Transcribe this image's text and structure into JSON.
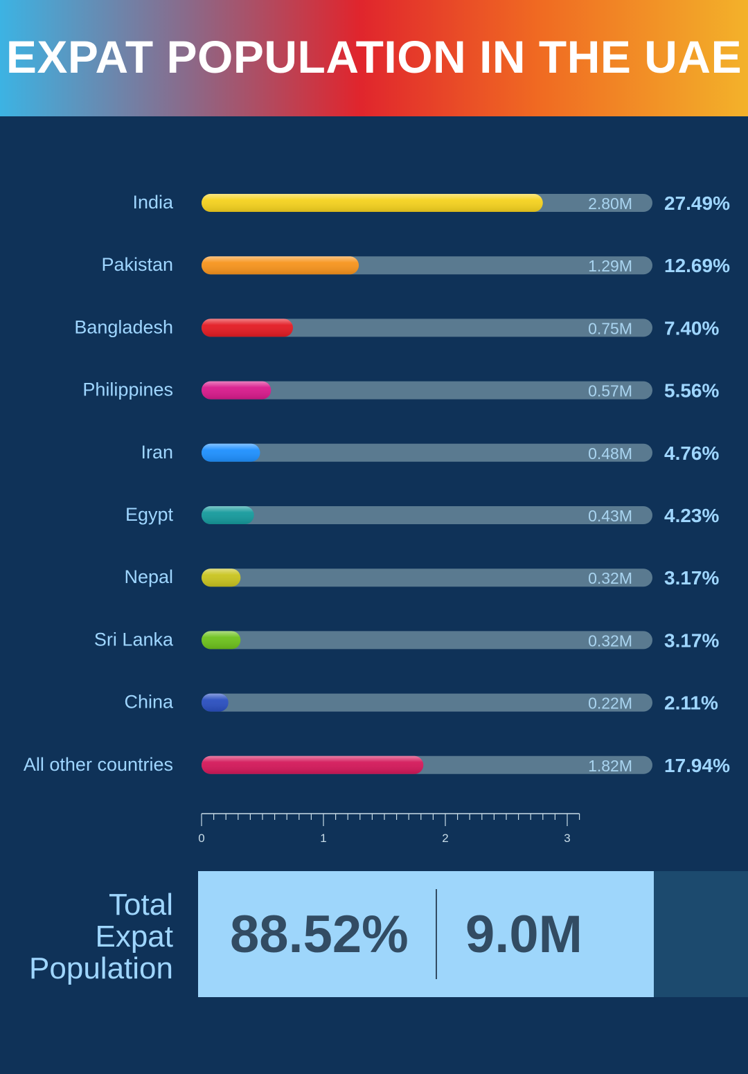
{
  "title": "EXPAT POPULATION IN THE UAE",
  "chart_data": {
    "type": "bar",
    "orientation": "horizontal",
    "categories": [
      "India",
      "Pakistan",
      "Bangladesh",
      "Philippines",
      "Iran",
      "Egypt",
      "Nepal",
      "Sri Lanka",
      "China",
      "All other countries"
    ],
    "values": [
      2.8,
      1.29,
      0.75,
      0.57,
      0.48,
      0.43,
      0.32,
      0.32,
      0.22,
      1.82
    ],
    "value_labels": [
      "2.80M",
      "1.29M",
      "0.75M",
      "0.57M",
      "0.48M",
      "0.43M",
      "0.32M",
      "0.32M",
      "0.22M",
      "1.82M"
    ],
    "percent_labels": [
      "27.49%",
      "12.69%",
      "7.40%",
      "5.56%",
      "4.76%",
      "4.23%",
      "3.17%",
      "3.17%",
      "2.11%",
      "17.94%"
    ],
    "colors": [
      "#f5d21e",
      "#f7941d",
      "#e31b23",
      "#d91a8c",
      "#1e90ff",
      "#159a9c",
      "#c9c41f",
      "#6dc11c",
      "#2a4fc0",
      "#d4185a"
    ],
    "track_color": "#5a7a90",
    "axis_ticks": [
      "0",
      "1",
      "2",
      "3"
    ],
    "xlim": [
      0,
      3.1
    ]
  },
  "total": {
    "label_lines": [
      "Total",
      "Expat",
      "Population"
    ],
    "percent": "88.52%",
    "count": "9.0M"
  }
}
